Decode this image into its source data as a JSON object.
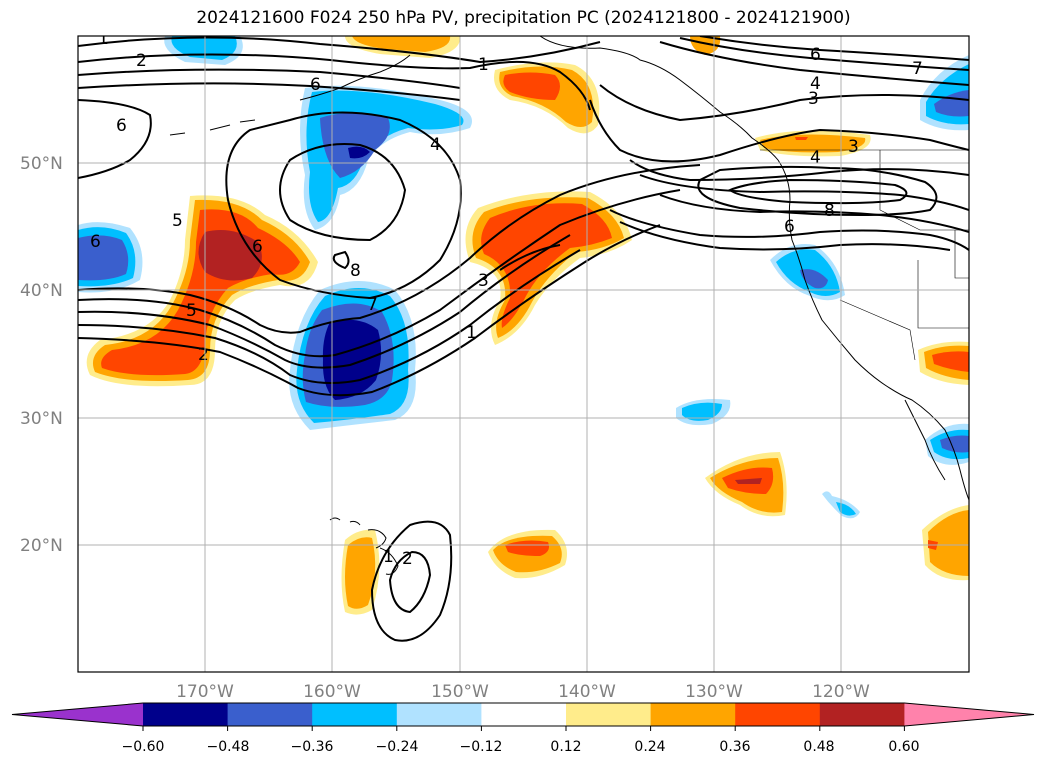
{
  "title": "2024121600 F024 250 hPa PV, precipitation PC (2024121800 - 2024121900)",
  "map": {
    "region": "North Pacific / western North America",
    "lon_range": [
      -180,
      -110
    ],
    "lat_range": [
      10,
      60
    ],
    "gridlines": true,
    "lat_labels": [
      "50°N",
      "40°N",
      "30°N",
      "20°N"
    ],
    "lon_labels": [
      "170°W",
      "160°W",
      "150°W",
      "140°W",
      "130°W",
      "120°W"
    ],
    "contour_labels": [
      "1",
      "2",
      "6",
      "6",
      "5",
      "6",
      "5",
      "2",
      "6",
      "8",
      "7",
      "4",
      "1",
      "3",
      "1",
      "6",
      "7",
      "4",
      "3",
      "3",
      "4",
      "8",
      "6",
      "1",
      "2"
    ]
  },
  "colorbar": {
    "ticks": [
      "−0.60",
      "−0.48",
      "−0.36",
      "−0.24",
      "−0.12",
      "0.12",
      "0.24",
      "0.36",
      "0.48",
      "0.60"
    ],
    "colors": [
      "#9a32cd",
      "#00008b",
      "#3a5fcd",
      "#00bfff",
      "#b0e2ff",
      "#ffffff",
      "#ffec8b",
      "#ffa500",
      "#ff4500",
      "#b22222",
      "#ff82ab"
    ]
  }
}
